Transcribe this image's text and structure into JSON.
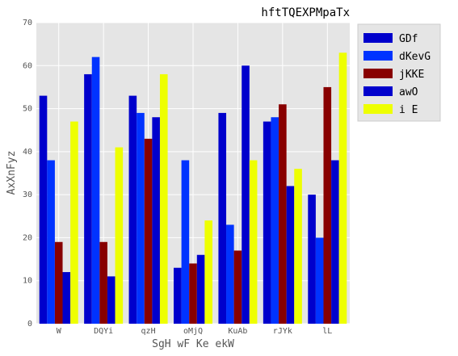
{
  "chart_data": {
    "type": "bar",
    "title": "hftTQEXPMpaTx",
    "xlabel": "SgH wF Ke ekW",
    "ylabel": "AxXnFyz",
    "ylim": [
      0,
      70
    ],
    "yticks": [
      "0",
      "10",
      "20",
      "30",
      "40",
      "50",
      "60",
      "70"
    ],
    "categories": [
      "W",
      "DQYi",
      "qzH",
      "oMjQ",
      "KuAb",
      "rJYk",
      "lL"
    ],
    "grid": true,
    "legend_position": "top-right outside",
    "series": [
      {
        "name": "GDf",
        "color": "#0000cc",
        "values": [
          53,
          58,
          53,
          13,
          49,
          47,
          30
        ]
      },
      {
        "name": "dKevG",
        "color": "#0033ff",
        "values": [
          38,
          62,
          49,
          38,
          23,
          48,
          20
        ]
      },
      {
        "name": "jKKE",
        "color": "#880000",
        "values": [
          19,
          19,
          43,
          14,
          17,
          51,
          55
        ]
      },
      {
        "name": "awO",
        "color": "#0000cc",
        "values": [
          12,
          11,
          48,
          16,
          60,
          32,
          38
        ]
      },
      {
        "name": "i E",
        "color": "#eeff00",
        "values": [
          47,
          41,
          58,
          24,
          38,
          36,
          63
        ]
      }
    ]
  }
}
